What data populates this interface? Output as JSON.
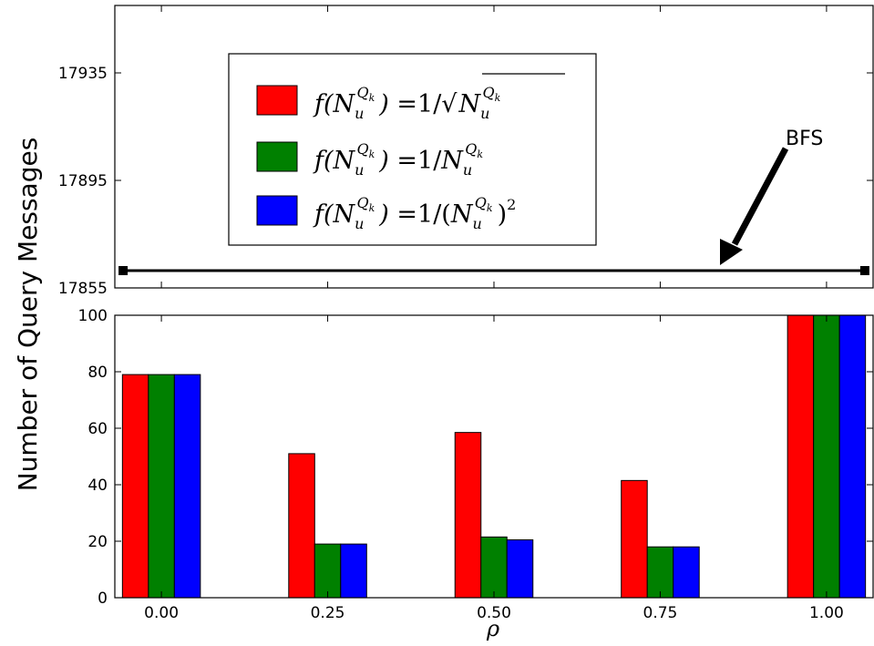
{
  "chart_data": {
    "type": "bar",
    "ylabel": "Number of Query Messages",
    "xlabel": "ρ",
    "categories": [
      "0.00",
      "0.25",
      "0.50",
      "0.75",
      "1.00"
    ],
    "series": [
      {
        "name": "f(N_u^{Q_k}) = 1/sqrt(N_u^{Q_k})",
        "color": "#ff0000",
        "values": [
          79,
          51,
          58.5,
          41.5,
          100
        ]
      },
      {
        "name": "f(N_u^{Q_k}) = 1/N_u^{Q_k}",
        "color": "#008000",
        "values": [
          79,
          19,
          21.5,
          18,
          100
        ]
      },
      {
        "name": "f(N_u^{Q_k}) = 1/(N_u^{Q_k})^2",
        "color": "#0000ff",
        "values": [
          79,
          19,
          20.5,
          18,
          100
        ]
      }
    ],
    "lower_axis": {
      "ylim": [
        0,
        100
      ],
      "yticks": [
        "0",
        "20",
        "40",
        "60",
        "80",
        "100"
      ]
    },
    "upper_axis": {
      "ylim": [
        17855,
        17935
      ],
      "yticks": [
        "17855",
        "17895",
        "17935"
      ],
      "reference_line": {
        "label": "BFS",
        "y": 17855,
        "x_range": [
          0.0,
          1.0
        ],
        "color": "#000000",
        "marker": "square"
      }
    },
    "annotations": [
      {
        "text": "BFS",
        "arrow_target": "reference line"
      }
    ],
    "legend_placement": "upper-left of top panel",
    "grid": false
  }
}
